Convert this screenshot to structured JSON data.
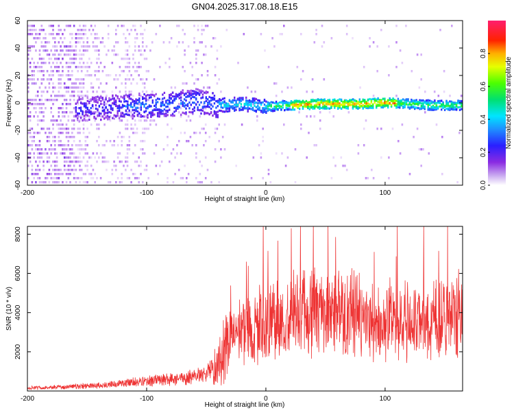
{
  "title": "GN04.2025.317.08.18.E15",
  "colors": {
    "snr_line": "#ee3333",
    "axis": "#000000",
    "background": "#ffffff"
  },
  "chart_data": [
    {
      "type": "heatmap",
      "name": "spectrogram",
      "title": "GN04.2025.317.08.18.E15",
      "xlabel": "Height of straight line (km)",
      "ylabel": "Frequency (Hz)",
      "xlim": [
        -200,
        165
      ],
      "ylim": [
        -60,
        60
      ],
      "xticks": [
        "-200",
        "-100",
        "0",
        "100"
      ],
      "xtick_values": [
        -200,
        -100,
        0,
        100
      ],
      "yticks": [
        "60",
        "40",
        "20",
        "0",
        "-20",
        "-40",
        "-60"
      ],
      "ytick_values": [
        60,
        40,
        20,
        0,
        -20,
        -40,
        -60
      ],
      "grid": false,
      "colorbar": {
        "label": "Normalized spectral amplitude",
        "range": [
          0,
          1
        ],
        "ticks": [
          "0.0",
          "0.2",
          "0.4",
          "0.6",
          "0.8"
        ],
        "tick_values": [
          0.0,
          0.2,
          0.4,
          0.6,
          0.8
        ],
        "colormap": "rainbow (purple-blue-cyan-green-yellow-red)"
      },
      "trace": {
        "description": "spectral ridge near 0 Hz",
        "x": [
          -160,
          -140,
          -120,
          -100,
          -80,
          -60,
          -40,
          -20,
          0,
          20,
          40,
          60,
          80,
          100,
          120,
          140,
          165
        ],
        "y": [
          -4,
          -3,
          -2,
          -1,
          0,
          2,
          -1,
          0,
          -2,
          -1,
          0,
          0,
          0,
          1,
          0,
          -1,
          -1
        ]
      }
    },
    {
      "type": "line",
      "name": "snr",
      "xlabel": "Height of straight line (km)",
      "ylabel": "SNR (10 * v/v)",
      "xlim": [
        -200,
        165
      ],
      "ylim": [
        0,
        8400
      ],
      "xticks": [
        "-200",
        "-100",
        "0",
        "100"
      ],
      "xtick_values": [
        -200,
        -100,
        0,
        100
      ],
      "yticks": [
        "2000",
        "4000",
        "6000",
        "8000"
      ],
      "ytick_values": [
        2000,
        4000,
        6000,
        8000
      ],
      "grid": false,
      "series": [
        {
          "name": "SNR",
          "color": "#ee3333",
          "x": [
            -200,
            -180,
            -160,
            -140,
            -120,
            -100,
            -80,
            -60,
            -50,
            -40,
            -35,
            -30,
            -20,
            -10,
            0,
            10,
            20,
            30,
            40,
            50,
            60,
            70,
            80,
            90,
            100,
            110,
            120,
            130,
            140,
            150,
            165
          ],
          "y": [
            150,
            180,
            230,
            280,
            380,
            500,
            600,
            700,
            850,
            1300,
            2200,
            2800,
            3100,
            3300,
            3400,
            3600,
            3800,
            3900,
            4050,
            4150,
            4150,
            4000,
            3700,
            3400,
            3400,
            3500,
            3600,
            3500,
            3600,
            3700,
            4000
          ]
        }
      ]
    }
  ]
}
